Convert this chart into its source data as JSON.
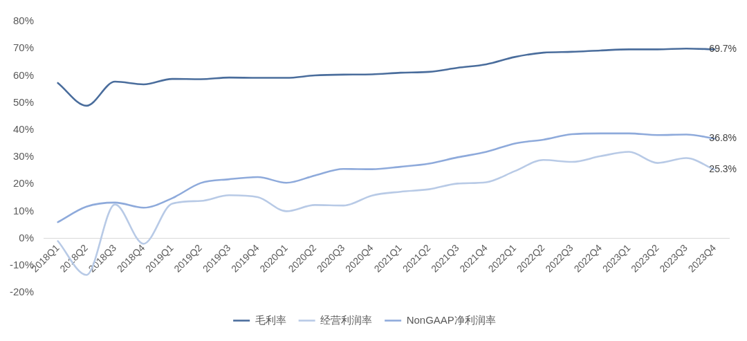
{
  "chart_data": {
    "type": "line",
    "categories": [
      "2018Q1",
      "2018Q2",
      "2018Q3",
      "2018Q4",
      "2019Q1",
      "2019Q2",
      "2019Q3",
      "2019Q4",
      "2020Q1",
      "2020Q2",
      "2020Q3",
      "2020Q4",
      "2021Q1",
      "2021Q2",
      "2021Q3",
      "2021Q4",
      "2022Q1",
      "2022Q2",
      "2022Q3",
      "2022Q4",
      "2023Q1",
      "2023Q2",
      "2023Q3",
      "2023Q4"
    ],
    "series": [
      {
        "name": "毛利率",
        "color": "#4a6d9c",
        "values": [
          57.3,
          48.9,
          57.8,
          56.8,
          58.8,
          58.7,
          59.3,
          59.2,
          59.2,
          60.1,
          60.4,
          60.5,
          61.1,
          61.4,
          62.9,
          64.2,
          66.9,
          68.5,
          68.8,
          69.3,
          69.7,
          69.7,
          70.0,
          69.7
        ],
        "value_labels": [
          null,
          null,
          null,
          null,
          null,
          null,
          null,
          null,
          null,
          null,
          null,
          null,
          null,
          null,
          null,
          null,
          null,
          null,
          null,
          null,
          null,
          null,
          null,
          "69.7%"
        ]
      },
      {
        "name": "经营利润率",
        "color": "#b8cae6",
        "values": [
          -1.0,
          -13.5,
          12.5,
          -2.0,
          12.8,
          13.8,
          15.9,
          15.2,
          10.0,
          12.3,
          12.1,
          15.8,
          17.2,
          18.1,
          20.2,
          20.7,
          24.8,
          28.9,
          28.2,
          30.3,
          31.9,
          27.8,
          29.6,
          25.3
        ],
        "value_labels": [
          null,
          null,
          null,
          null,
          null,
          null,
          null,
          null,
          null,
          null,
          null,
          null,
          null,
          null,
          null,
          null,
          null,
          null,
          null,
          null,
          null,
          null,
          null,
          "25.3%"
        ]
      },
      {
        "name": "NonGAAP净利润率",
        "color": "#8eaadb",
        "values": [
          6.0,
          11.7,
          13.2,
          11.3,
          14.8,
          20.4,
          21.8,
          22.6,
          20.5,
          23.2,
          25.6,
          25.5,
          26.4,
          27.6,
          29.9,
          31.9,
          35.0,
          36.4,
          38.4,
          38.7,
          38.7,
          38.1,
          38.3,
          36.8
        ],
        "value_labels": [
          null,
          null,
          null,
          null,
          null,
          null,
          null,
          null,
          null,
          null,
          null,
          null,
          null,
          null,
          null,
          null,
          null,
          null,
          null,
          null,
          null,
          null,
          null,
          "36.8%"
        ]
      }
    ],
    "ylim": [
      -20,
      80
    ],
    "yticks": [
      {
        "value": -20,
        "label": "-20%"
      },
      {
        "value": -10,
        "label": "-10%"
      },
      {
        "value": 0,
        "label": "0%"
      },
      {
        "value": 10,
        "label": "10%"
      },
      {
        "value": 20,
        "label": "20%"
      },
      {
        "value": 30,
        "label": "30%"
      },
      {
        "value": 40,
        "label": "40%"
      },
      {
        "value": 50,
        "label": "50%"
      },
      {
        "value": 60,
        "label": "60%"
      },
      {
        "value": 70,
        "label": "70%"
      },
      {
        "value": 80,
        "label": "80%"
      }
    ],
    "grid": false,
    "legend": "bottom",
    "marker": "none",
    "line_style": "solid"
  }
}
